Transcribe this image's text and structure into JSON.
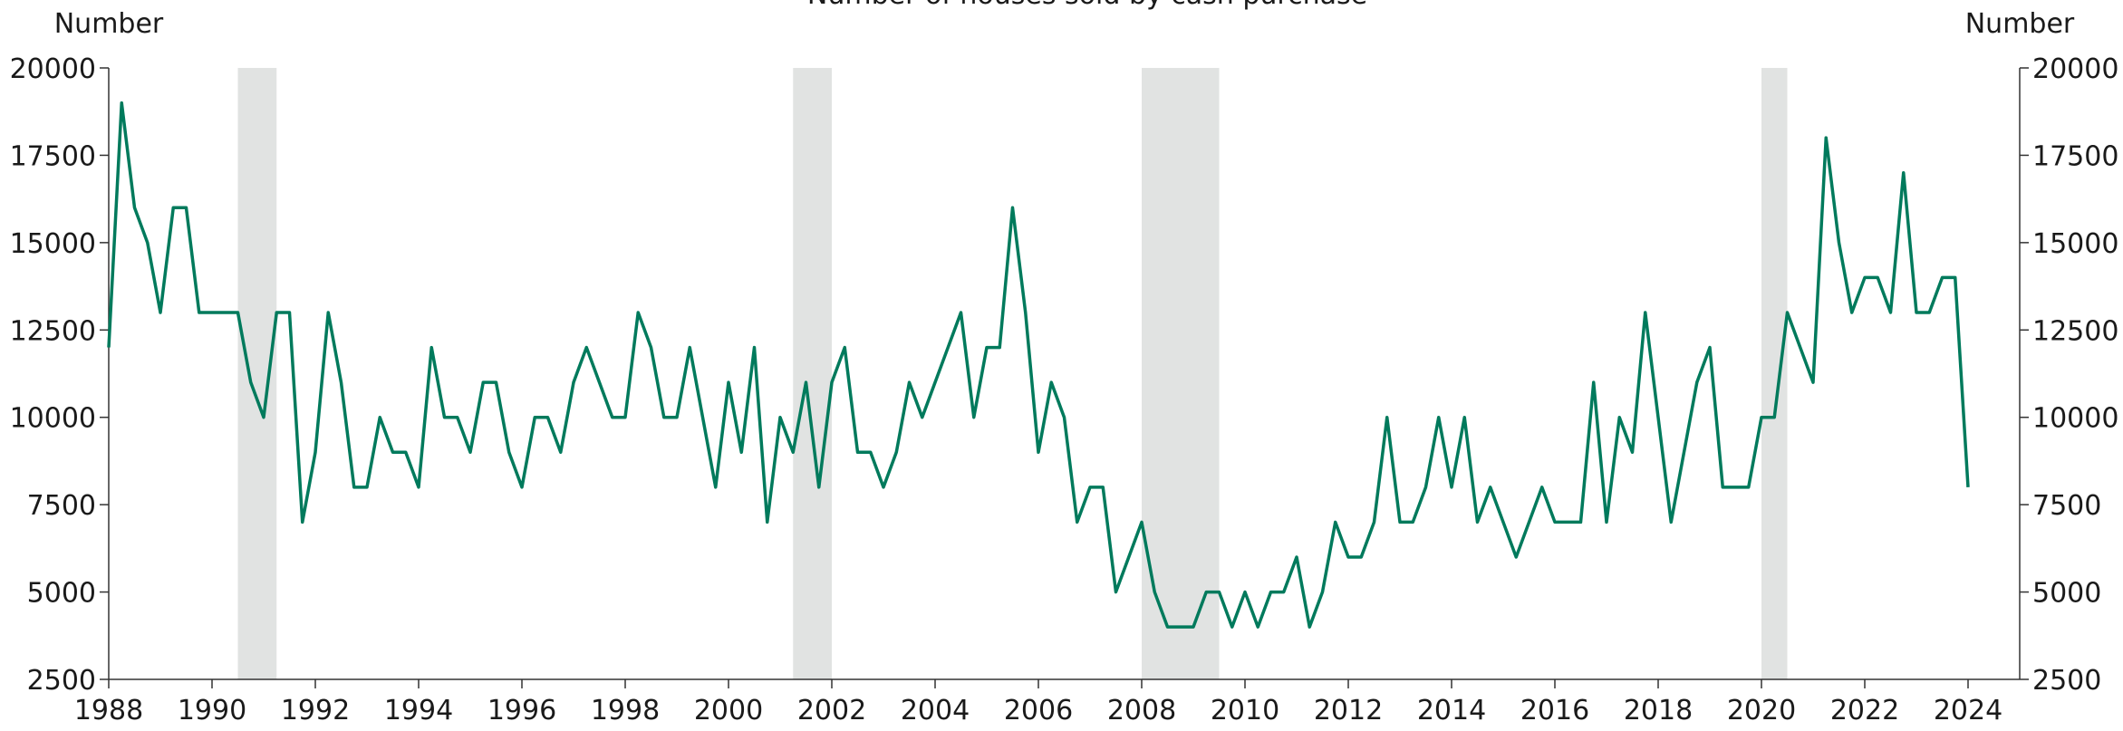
{
  "chart_data": {
    "type": "line",
    "title": "Number of houses sold by cash purchase",
    "y_label": "Number",
    "y2_label": "Number",
    "x": [
      1988,
      1988.25,
      1988.5,
      1988.75,
      1989,
      1989.25,
      1989.5,
      1989.75,
      1990,
      1990.25,
      1990.5,
      1990.75,
      1991,
      1991.25,
      1991.5,
      1991.75,
      1992,
      1992.25,
      1992.5,
      1992.75,
      1993,
      1993.25,
      1993.5,
      1993.75,
      1994,
      1994.25,
      1994.5,
      1994.75,
      1995,
      1995.25,
      1995.5,
      1995.75,
      1996,
      1996.25,
      1996.5,
      1996.75,
      1997,
      1997.25,
      1997.5,
      1997.75,
      1998,
      1998.25,
      1998.5,
      1998.75,
      1999,
      1999.25,
      1999.5,
      1999.75,
      2000,
      2000.25,
      2000.5,
      2000.75,
      2001,
      2001.25,
      2001.5,
      2001.75,
      2002,
      2002.25,
      2002.5,
      2002.75,
      2003,
      2003.25,
      2003.5,
      2003.75,
      2004,
      2004.25,
      2004.5,
      2004.75,
      2005,
      2005.25,
      2005.5,
      2005.75,
      2006,
      2006.25,
      2006.5,
      2006.75,
      2007,
      2007.25,
      2007.5,
      2007.75,
      2008,
      2008.25,
      2008.5,
      2008.75,
      2009,
      2009.25,
      2009.5,
      2009.75,
      2010,
      2010.25,
      2010.5,
      2010.75,
      2011,
      2011.25,
      2011.5,
      2011.75,
      2012,
      2012.25,
      2012.5,
      2012.75,
      2013,
      2013.25,
      2013.5,
      2013.75,
      2014,
      2014.25,
      2014.5,
      2014.75,
      2015,
      2015.25,
      2015.5,
      2015.75,
      2016,
      2016.25,
      2016.5,
      2016.75,
      2017,
      2017.25,
      2017.5,
      2017.75,
      2018,
      2018.25,
      2018.5,
      2018.75,
      2019,
      2019.25,
      2019.5,
      2019.75,
      2020,
      2020.25,
      2020.5,
      2020.75,
      2021,
      2021.25,
      2021.5,
      2021.75,
      2022,
      2022.25,
      2022.5,
      2022.75,
      2023,
      2023.25,
      2023.5,
      2023.75,
      2024
    ],
    "series": [
      {
        "color": "#007a5c",
        "values": [
          12000,
          19000,
          16000,
          15000,
          13000,
          16000,
          16000,
          13000,
          13000,
          13000,
          13000,
          11000,
          10000,
          13000,
          13000,
          7000,
          9000,
          13000,
          11000,
          8000,
          8000,
          10000,
          9000,
          9000,
          8000,
          12000,
          10000,
          10000,
          9000,
          11000,
          11000,
          9000,
          8000,
          10000,
          10000,
          9000,
          11000,
          12000,
          11000,
          10000,
          10000,
          13000,
          12000,
          10000,
          10000,
          12000,
          10000,
          8000,
          11000,
          9000,
          12000,
          7000,
          10000,
          9000,
          11000,
          8000,
          11000,
          12000,
          9000,
          9000,
          8000,
          9000,
          11000,
          10000,
          11000,
          12000,
          13000,
          10000,
          12000,
          12000,
          16000,
          13000,
          9000,
          11000,
          10000,
          7000,
          8000,
          8000,
          5000,
          6000,
          7000,
          5000,
          4000,
          4000,
          4000,
          5000,
          5000,
          4000,
          5000,
          4000,
          5000,
          5000,
          6000,
          4000,
          5000,
          7000,
          6000,
          6000,
          7000,
          10000,
          7000,
          7000,
          8000,
          10000,
          8000,
          10000,
          7000,
          8000,
          7000,
          6000,
          7000,
          8000,
          7000,
          7000,
          7000,
          11000,
          7000,
          10000,
          9000,
          13000,
          10000,
          7000,
          9000,
          11000,
          12000,
          8000,
          8000,
          8000,
          10000,
          10000,
          13000,
          12000,
          11000,
          18000,
          15000,
          13000,
          14000,
          14000,
          13000,
          17000,
          13000,
          13000,
          14000,
          14000,
          8000
        ]
      }
    ],
    "shaded_ranges": [
      [
        1990.5,
        1991.25
      ],
      [
        2001.25,
        2002.0
      ],
      [
        2008.0,
        2009.5
      ],
      [
        2020.0,
        2020.5
      ]
    ],
    "shade_color": "#e1e3e2",
    "xlim": [
      1988,
      2025
    ],
    "xticks": [
      1988,
      1990,
      1992,
      1994,
      1996,
      1998,
      2000,
      2002,
      2004,
      2006,
      2008,
      2010,
      2012,
      2014,
      2016,
      2018,
      2020,
      2022,
      2024
    ],
    "ylim": [
      2500,
      20000
    ],
    "yticks": [
      2500,
      5000,
      7500,
      10000,
      12500,
      15000,
      17500,
      20000
    ],
    "y2lim": [
      2500,
      20000
    ],
    "y2ticks": [
      2500,
      5000,
      7500,
      10000,
      12500,
      15000,
      17500,
      20000
    ]
  }
}
